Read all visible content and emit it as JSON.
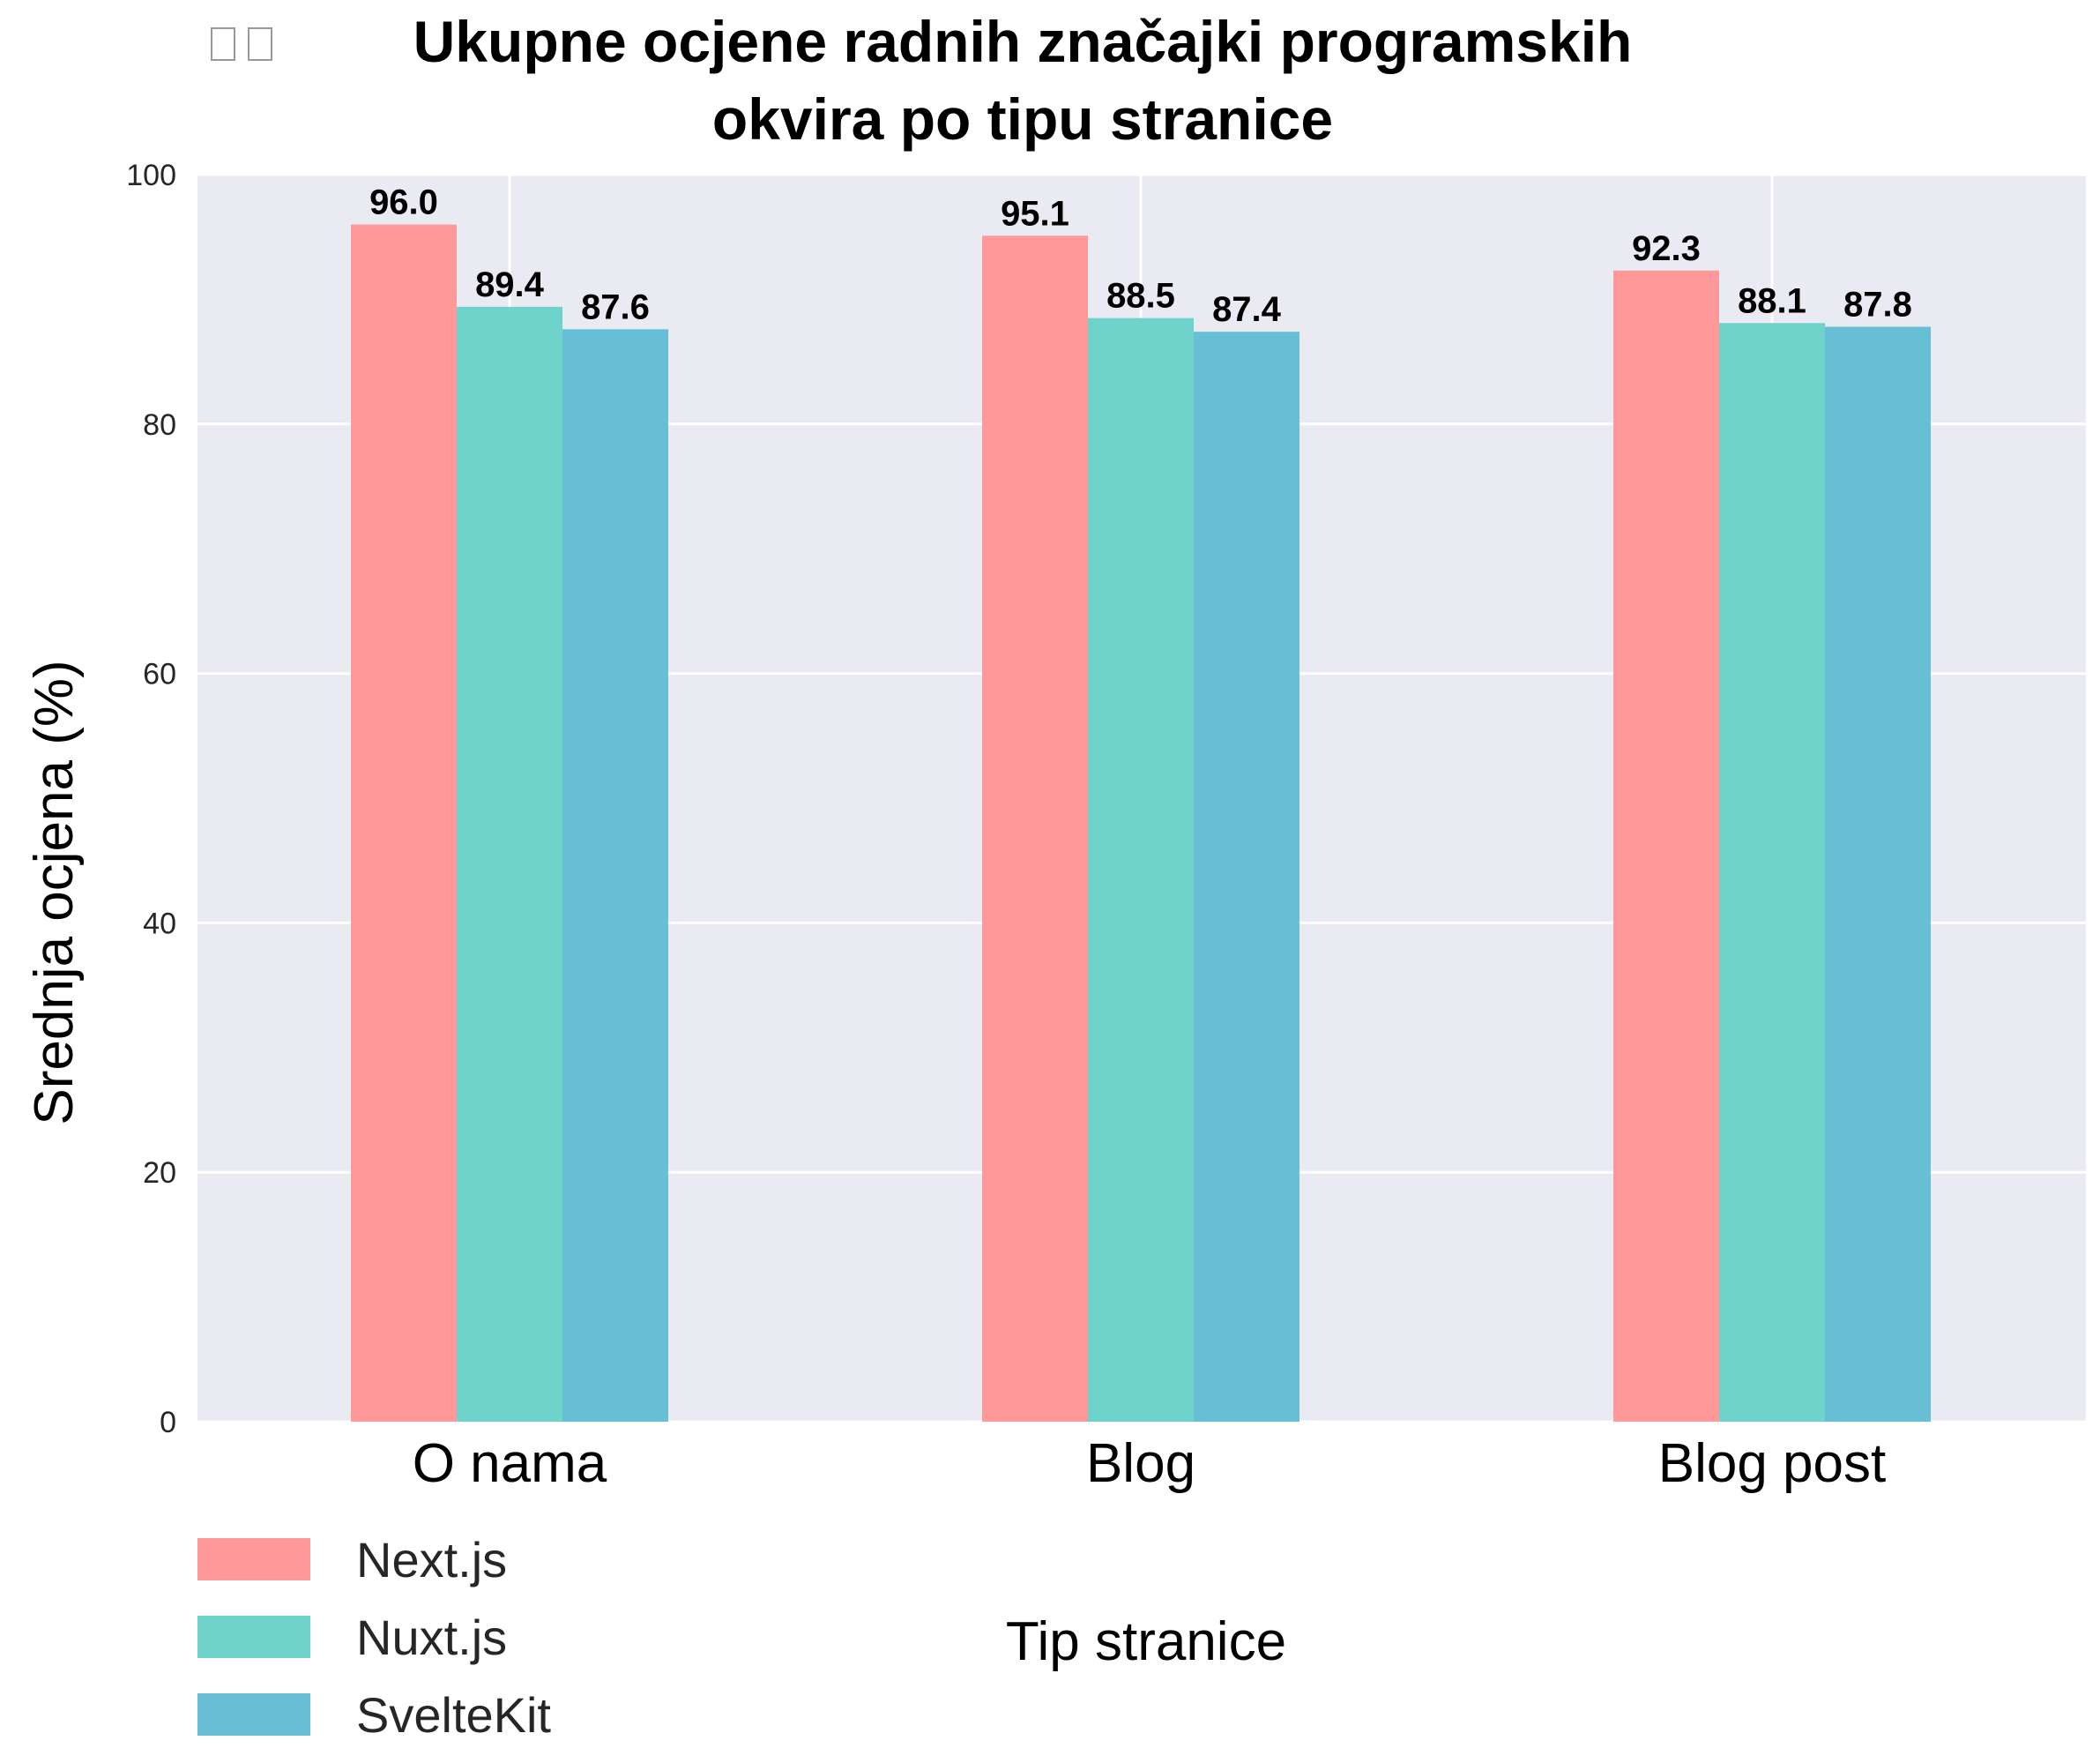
{
  "chart_data": {
    "type": "bar",
    "title_lines": [
      "Ukupne ocjene radnih značajki programskih",
      "okvira po tipu stranice"
    ],
    "xlabel": "Tip stranice",
    "ylabel": "Srednja ocjena (%)",
    "categories": [
      "O nama",
      "Blog",
      "Blog post"
    ],
    "series": [
      {
        "name": "Next.js",
        "values": [
          96.0,
          95.1,
          92.3
        ],
        "color": "#FF9999"
      },
      {
        "name": "Nuxt.js",
        "values": [
          89.4,
          88.5,
          88.1
        ],
        "color": "#6FD3CC"
      },
      {
        "name": "SvelteKit",
        "values": [
          87.6,
          87.4,
          87.8
        ],
        "color": "#66BFD4"
      }
    ],
    "ylim": [
      0,
      100
    ],
    "yticks": [
      0,
      20,
      40,
      60,
      80,
      100
    ],
    "value_labels": true,
    "grid": true,
    "legend": "bottom-left",
    "plot_background": "#EAEAF2",
    "grid_color": "#FFFFFF"
  }
}
